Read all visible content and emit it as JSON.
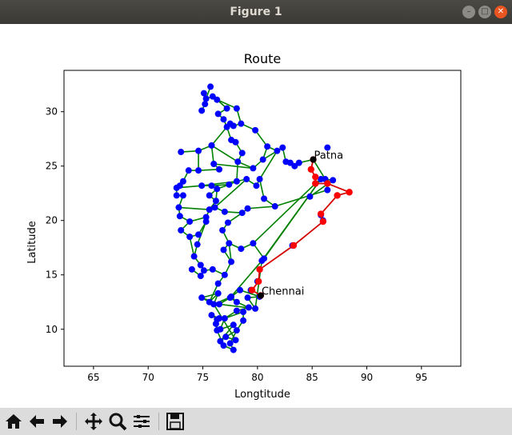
{
  "window": {
    "title": "Figure 1"
  },
  "toolbar": {
    "buttons": [
      {
        "name": "home-icon"
      },
      {
        "name": "back-icon"
      },
      {
        "name": "forward-icon"
      },
      {
        "name": "pan-icon"
      },
      {
        "name": "zoom-icon"
      },
      {
        "name": "subplots-icon"
      },
      {
        "name": "save-icon"
      }
    ]
  },
  "colors": {
    "network": "#008000",
    "node": "#0000ff",
    "route": "#d40000",
    "route_node": "#ff0000",
    "endpoint": "#000000"
  },
  "chart_data": {
    "type": "scatter",
    "title": "Route",
    "xlabel": "Longtitude",
    "ylabel": "Latitude",
    "xlim": [
      62.3,
      98.6
    ],
    "ylim": [
      6.6,
      33.8
    ],
    "xticks": [
      65,
      70,
      75,
      80,
      85,
      90,
      95
    ],
    "yticks": [
      10,
      15,
      20,
      25,
      30
    ],
    "grid": false,
    "annotations": [
      {
        "text": "Patna",
        "x": 85.1,
        "y": 25.6
      },
      {
        "text": "Chennai",
        "x": 80.3,
        "y": 13.1
      }
    ],
    "nodes": [
      [
        75.7,
        32.3
      ],
      [
        75.1,
        31.7
      ],
      [
        75.3,
        31.2
      ],
      [
        75.9,
        31.4
      ],
      [
        76.3,
        31.1
      ],
      [
        75.2,
        30.7
      ],
      [
        74.9,
        30.1
      ],
      [
        76.4,
        29.8
      ],
      [
        77.2,
        30.3
      ],
      [
        78.1,
        30.3
      ],
      [
        76.9,
        29.3
      ],
      [
        77.5,
        28.9
      ],
      [
        77.2,
        28.6
      ],
      [
        77.8,
        28.7
      ],
      [
        78.5,
        28.9
      ],
      [
        77.6,
        27.4
      ],
      [
        78.0,
        27.2
      ],
      [
        79.8,
        28.3
      ],
      [
        80.9,
        26.8
      ],
      [
        81.8,
        26.4
      ],
      [
        82.3,
        26.7
      ],
      [
        80.5,
        25.6
      ],
      [
        82.6,
        25.4
      ],
      [
        83.0,
        25.3
      ],
      [
        83.4,
        25.0
      ],
      [
        83.8,
        25.3
      ],
      [
        85.1,
        25.6
      ],
      [
        75.8,
        26.9
      ],
      [
        74.6,
        26.4
      ],
      [
        73.0,
        26.3
      ],
      [
        76.0,
        25.2
      ],
      [
        76.5,
        24.7
      ],
      [
        74.6,
        24.6
      ],
      [
        73.7,
        24.6
      ],
      [
        78.6,
        26.2
      ],
      [
        78.2,
        25.4
      ],
      [
        79.6,
        24.8
      ],
      [
        75.8,
        23.2
      ],
      [
        74.9,
        23.2
      ],
      [
        73.2,
        23.6
      ],
      [
        72.9,
        23.2
      ],
      [
        72.6,
        23.0
      ],
      [
        72.6,
        22.3
      ],
      [
        73.2,
        22.3
      ],
      [
        72.8,
        21.2
      ],
      [
        72.9,
        20.4
      ],
      [
        73.8,
        19.9
      ],
      [
        73.0,
        19.1
      ],
      [
        73.8,
        18.5
      ],
      [
        74.6,
        18.7
      ],
      [
        75.3,
        19.9
      ],
      [
        76.8,
        19.1
      ],
      [
        77.3,
        19.8
      ],
      [
        78.6,
        20.7
      ],
      [
        79.1,
        21.1
      ],
      [
        81.6,
        21.3
      ],
      [
        75.3,
        20.3
      ],
      [
        75.6,
        21.0
      ],
      [
        76.2,
        21.8
      ],
      [
        77.4,
        23.3
      ],
      [
        76.3,
        22.9
      ],
      [
        78.1,
        23.6
      ],
      [
        79.0,
        23.8
      ],
      [
        79.9,
        23.2
      ],
      [
        80.2,
        23.8
      ],
      [
        80.6,
        22.0
      ],
      [
        76.1,
        21.2
      ],
      [
        77.0,
        20.8
      ],
      [
        75.6,
        22.3
      ],
      [
        74.5,
        17.8
      ],
      [
        74.2,
        16.7
      ],
      [
        74.8,
        15.9
      ],
      [
        75.1,
        15.4
      ],
      [
        76.9,
        17.3
      ],
      [
        77.4,
        17.9
      ],
      [
        78.5,
        17.4
      ],
      [
        79.6,
        17.9
      ],
      [
        80.6,
        16.5
      ],
      [
        77.6,
        16.2
      ],
      [
        77.0,
        15.0
      ],
      [
        76.4,
        14.2
      ],
      [
        75.9,
        15.5
      ],
      [
        74.0,
        15.5
      ],
      [
        74.8,
        14.9
      ],
      [
        76.0,
        12.3
      ],
      [
        77.6,
        13.0
      ],
      [
        78.1,
        12.5
      ],
      [
        79.2,
        12.0
      ],
      [
        78.7,
        10.8
      ],
      [
        78.1,
        9.9
      ],
      [
        77.5,
        8.7
      ],
      [
        77.8,
        8.1
      ],
      [
        76.9,
        8.5
      ],
      [
        76.3,
        9.9
      ],
      [
        76.2,
        10.5
      ],
      [
        76.5,
        11.0
      ],
      [
        77.0,
        11.0
      ],
      [
        78.1,
        11.7
      ],
      [
        78.7,
        11.6
      ],
      [
        79.8,
        11.9
      ],
      [
        80.2,
        13.0
      ],
      [
        79.1,
        12.9
      ],
      [
        75.8,
        11.3
      ],
      [
        76.6,
        10.0
      ],
      [
        77.8,
        10.4
      ],
      [
        76.6,
        8.9
      ],
      [
        77.1,
        9.3
      ],
      [
        78.0,
        9.0
      ],
      [
        76.3,
        10.9
      ],
      [
        76.4,
        13.3
      ],
      [
        75.6,
        12.5
      ],
      [
        74.9,
        12.9
      ],
      [
        76.5,
        12.3
      ],
      [
        77.5,
        12.9
      ],
      [
        78.4,
        13.6
      ],
      [
        79.4,
        13.6
      ],
      [
        80.4,
        16.3
      ],
      [
        85.3,
        23.4
      ],
      [
        85.8,
        23.8
      ],
      [
        86.2,
        23.8
      ],
      [
        86.9,
        23.7
      ],
      [
        86.4,
        22.8
      ],
      [
        84.8,
        22.2
      ],
      [
        87.3,
        22.3
      ],
      [
        88.4,
        22.6
      ],
      [
        85.8,
        20.5
      ],
      [
        86.0,
        20.0
      ],
      [
        83.2,
        17.7
      ],
      [
        80.2,
        15.5
      ],
      [
        80.0,
        14.4
      ],
      [
        79.4,
        13.6
      ],
      [
        80.3,
        13.1
      ],
      [
        86.4,
        26.7
      ]
    ],
    "edges": [
      [
        0,
        2
      ],
      [
        2,
        5
      ],
      [
        5,
        6
      ],
      [
        2,
        3
      ],
      [
        3,
        4
      ],
      [
        4,
        8
      ],
      [
        8,
        7
      ],
      [
        7,
        10
      ],
      [
        10,
        12
      ],
      [
        12,
        11
      ],
      [
        11,
        13
      ],
      [
        13,
        14
      ],
      [
        14,
        17
      ],
      [
        17,
        18
      ],
      [
        18,
        19
      ],
      [
        19,
        20
      ],
      [
        20,
        22
      ],
      [
        22,
        23
      ],
      [
        23,
        24
      ],
      [
        24,
        25
      ],
      [
        25,
        26
      ],
      [
        12,
        15
      ],
      [
        15,
        16
      ],
      [
        16,
        34
      ],
      [
        34,
        35
      ],
      [
        35,
        36
      ],
      [
        36,
        21
      ],
      [
        21,
        18
      ],
      [
        12,
        27
      ],
      [
        27,
        28
      ],
      [
        28,
        29
      ],
      [
        27,
        30
      ],
      [
        30,
        31
      ],
      [
        31,
        32
      ],
      [
        32,
        33
      ],
      [
        33,
        39
      ],
      [
        39,
        40
      ],
      [
        40,
        41
      ],
      [
        41,
        42
      ],
      [
        42,
        43
      ],
      [
        43,
        44
      ],
      [
        44,
        45
      ],
      [
        45,
        46
      ],
      [
        46,
        47
      ],
      [
        47,
        48
      ],
      [
        48,
        49
      ],
      [
        49,
        50
      ],
      [
        50,
        56
      ],
      [
        56,
        57
      ],
      [
        57,
        58
      ],
      [
        58,
        60
      ],
      [
        60,
        59
      ],
      [
        59,
        61
      ],
      [
        61,
        62
      ],
      [
        62,
        63
      ],
      [
        63,
        64
      ],
      [
        64,
        65
      ],
      [
        65,
        55
      ],
      [
        55,
        54
      ],
      [
        54,
        53
      ],
      [
        53,
        52
      ],
      [
        52,
        51
      ],
      [
        51,
        74
      ],
      [
        74,
        75
      ],
      [
        75,
        76
      ],
      [
        76,
        77
      ],
      [
        77,
        118
      ],
      [
        50,
        69
      ],
      [
        69,
        70
      ],
      [
        70,
        71
      ],
      [
        71,
        72
      ],
      [
        72,
        81
      ],
      [
        81,
        79
      ],
      [
        79,
        80
      ],
      [
        80,
        110
      ],
      [
        110,
        109
      ],
      [
        109,
        84
      ],
      [
        84,
        85
      ],
      [
        85,
        86
      ],
      [
        86,
        87
      ],
      [
        87,
        97
      ],
      [
        97,
        96
      ],
      [
        96,
        98
      ],
      [
        98,
        88
      ],
      [
        88,
        89
      ],
      [
        89,
        90
      ],
      [
        90,
        91
      ],
      [
        91,
        92
      ],
      [
        92,
        93
      ],
      [
        93,
        94
      ],
      [
        94,
        95
      ],
      [
        95,
        102
      ],
      [
        102,
        108
      ],
      [
        108,
        93
      ],
      [
        89,
        106
      ],
      [
        106,
        105
      ],
      [
        105,
        104
      ],
      [
        104,
        103
      ],
      [
        103,
        96
      ],
      [
        86,
        113
      ],
      [
        113,
        114
      ],
      [
        114,
        100
      ],
      [
        100,
        101
      ],
      [
        101,
        99
      ],
      [
        73,
        78
      ],
      [
        78,
        79
      ],
      [
        73,
        74
      ],
      [
        76,
        117
      ],
      [
        62,
        66
      ],
      [
        66,
        67
      ],
      [
        67,
        53
      ],
      [
        37,
        38
      ],
      [
        38,
        41
      ],
      [
        37,
        59
      ],
      [
        37,
        60
      ],
      [
        55,
        121
      ],
      [
        121,
        119
      ],
      [
        119,
        120
      ],
      [
        120,
        122
      ],
      [
        26,
        119
      ],
      [
        44,
        57
      ],
      [
        46,
        56
      ],
      [
        48,
        70
      ],
      [
        82,
        83
      ],
      [
        83,
        72
      ],
      [
        74,
        78
      ],
      [
        107,
        106
      ],
      [
        107,
        84
      ],
      [
        112,
        85
      ],
      [
        111,
        109
      ],
      [
        111,
        112
      ],
      [
        112,
        113
      ],
      [
        57,
        66
      ],
      [
        28,
        32
      ],
      [
        30,
        36
      ],
      [
        21,
        20
      ],
      [
        19,
        64
      ],
      [
        35,
        61
      ],
      [
        68,
        60
      ],
      [
        68,
        58
      ],
      [
        27,
        35
      ],
      [
        14,
        9
      ],
      [
        9,
        4
      ],
      [
        61,
        38
      ],
      [
        111,
        110
      ],
      [
        112,
        99
      ],
      [
        113,
        116
      ],
      [
        116,
        99
      ],
      [
        117,
        118
      ],
      [
        118,
        116
      ]
    ],
    "route": [
      [
        85.1,
        25.6
      ],
      [
        84.9,
        24.7
      ],
      [
        85.3,
        24.0
      ],
      [
        85.3,
        23.4
      ],
      [
        86.4,
        23.4
      ],
      [
        88.4,
        22.6
      ],
      [
        87.3,
        22.3
      ],
      [
        85.8,
        20.6
      ],
      [
        86.0,
        19.9
      ],
      [
        83.3,
        17.7
      ],
      [
        80.2,
        15.5
      ],
      [
        80.1,
        14.4
      ],
      [
        79.5,
        13.6
      ],
      [
        80.3,
        13.1
      ]
    ],
    "endpoints": [
      [
        85.1,
        25.6
      ],
      [
        80.3,
        13.1
      ]
    ]
  }
}
